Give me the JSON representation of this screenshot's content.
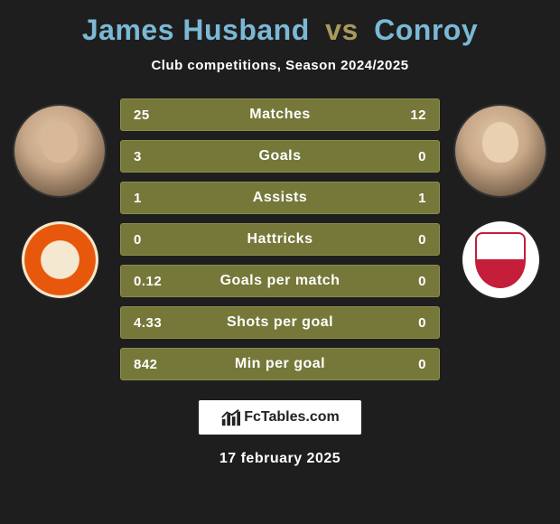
{
  "title": {
    "player1": "James Husband",
    "vs": "vs",
    "player2": "Conroy",
    "player_color": "#7bb8d6",
    "vs_color": "#a89a5c"
  },
  "subtitle": "Club competitions, Season 2024/2025",
  "stats": {
    "bar_bg": "#757839",
    "bar_border": "#8a8d4a",
    "rows": [
      {
        "left": "25",
        "label": "Matches",
        "right": "12"
      },
      {
        "left": "3",
        "label": "Goals",
        "right": "0"
      },
      {
        "left": "1",
        "label": "Assists",
        "right": "1"
      },
      {
        "left": "0",
        "label": "Hattricks",
        "right": "0"
      },
      {
        "left": "0.12",
        "label": "Goals per match",
        "right": "0"
      },
      {
        "left": "4.33",
        "label": "Shots per goal",
        "right": "0"
      },
      {
        "left": "842",
        "label": "Min per goal",
        "right": "0"
      }
    ]
  },
  "players": {
    "left": {
      "name": "James Husband",
      "club_badge": "blackpool"
    },
    "right": {
      "name": "Conroy",
      "club_badge": "crawley"
    }
  },
  "footer": {
    "brand_icon": "chart-icon",
    "brand_text": "FcTables.com",
    "date": "17 february 2025"
  },
  "colors": {
    "page_bg": "#1e1e1e",
    "text": "#ffffff"
  }
}
